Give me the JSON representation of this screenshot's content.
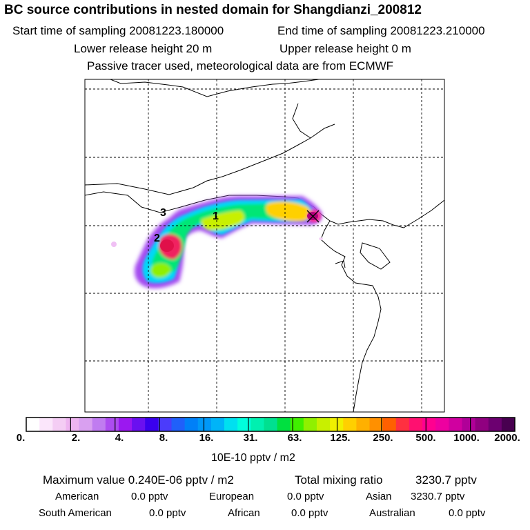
{
  "header": {
    "title": "BC  source contributions in nested domain for Shangdianzi_200812",
    "start_label": "Start time of sampling 20081223.180000",
    "end_label": "End time of sampling 20081223.210000",
    "lower_label": "Lower release height   20 m",
    "upper_label": "Upper release height    0 m",
    "tracer_note": "Passive tracer used, meteorological data are from ECMWF"
  },
  "map": {
    "markers": [
      "1",
      "2",
      "3"
    ],
    "receptor_icon": "cross-marker-icon"
  },
  "colorbar": {
    "colors": [
      "#ffffff",
      "#fbe6fb",
      "#f4cdf4",
      "#eeb4f0",
      "#d9a0f0",
      "#c07cf0",
      "#ad4cf0",
      "#9b18f0",
      "#6a10f0",
      "#3a00ee",
      "#4b3cfb",
      "#2060fa",
      "#0080f8",
      "#0098f8",
      "#00b4f8",
      "#00e0f0",
      "#00ffdd",
      "#00f0b0",
      "#00e090",
      "#00e040",
      "#40f000",
      "#90f000",
      "#c8f000",
      "#f0f000",
      "#ffd000",
      "#ffb000",
      "#ff9000",
      "#ff6000",
      "#ff3040",
      "#ff1070",
      "#ff0090",
      "#ee00a0",
      "#d000a0",
      "#b00098",
      "#900080",
      "#6c0070",
      "#480050"
    ],
    "ticks": [
      "0.",
      "2.",
      "4.",
      "8.",
      "16.",
      "31.",
      "63.",
      "125.",
      "250.",
      "500.",
      "1000.",
      "2000."
    ],
    "unit": "10E-10 pptv / m2"
  },
  "stats": {
    "max_label": "Maximum value  0.240E-06 pptv / m2",
    "total_label": "Total mixing ratio",
    "total_value": "3230.7 pptv"
  },
  "sources": [
    {
      "name": "American",
      "value": "0.0 pptv"
    },
    {
      "name": "European",
      "value": "0.0 pptv"
    },
    {
      "name": "Asian",
      "value": "3230.7 pptv"
    },
    {
      "name": "South American",
      "value": "0.0 pptv"
    },
    {
      "name": "African",
      "value": "0.0 pptv"
    },
    {
      "name": "Australian",
      "value": "0.0 pptv"
    }
  ]
}
